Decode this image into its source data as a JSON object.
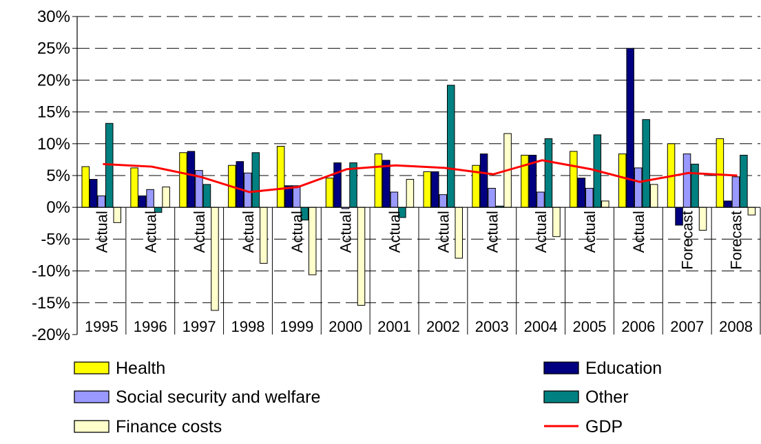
{
  "chart_data": {
    "type": "bar",
    "title": "",
    "xlabel": "",
    "ylabel": "",
    "ylim": [
      -20,
      30
    ],
    "y_ticks": [
      "30%",
      "25%",
      "20%",
      "15%",
      "10%",
      "5%",
      "0%",
      "-5%",
      "-10%",
      "-15%",
      "-20%"
    ],
    "y_tick_values": [
      30,
      25,
      20,
      15,
      10,
      5,
      0,
      -5,
      -10,
      -15,
      -20
    ],
    "grid": "horizontal dashed",
    "categories": [
      "1995",
      "1996",
      "1997",
      "1998",
      "1999",
      "2000",
      "2001",
      "2002",
      "2003",
      "2004",
      "2005",
      "2006",
      "2007",
      "2008"
    ],
    "status_labels": [
      "Actual",
      "Actual",
      "Actual",
      "Actual",
      "Actual",
      "Actual",
      "Actual",
      "Actual",
      "Actual",
      "Actual",
      "Actual",
      "Actual",
      "Forecast",
      "Forecast"
    ],
    "series": [
      {
        "name": "Health",
        "type": "bar",
        "color": "#FFFF00",
        "values": [
          6.4,
          6.2,
          8.6,
          6.6,
          9.6,
          4.6,
          8.4,
          5.6,
          6.6,
          8.2,
          8.8,
          8.4,
          10.0,
          10.8
        ]
      },
      {
        "name": "Education",
        "type": "bar",
        "color": "#000080",
        "values": [
          4.4,
          1.8,
          8.8,
          7.2,
          3.4,
          7.0,
          7.4,
          5.6,
          8.4,
          8.2,
          4.6,
          25.0,
          -2.8,
          1.0
        ]
      },
      {
        "name": "Social security and welfare",
        "type": "bar",
        "color": "#9999FF",
        "values": [
          1.8,
          2.8,
          5.8,
          5.4,
          3.4,
          -0.2,
          2.4,
          2.0,
          3.0,
          2.4,
          3.0,
          6.2,
          8.4,
          4.8
        ]
      },
      {
        "name": "Other",
        "type": "bar",
        "color": "#008080",
        "values": [
          13.2,
          -0.8,
          3.6,
          8.6,
          -2.0,
          7.0,
          -1.6,
          19.2,
          0.2,
          10.8,
          11.4,
          13.8,
          6.8,
          8.2
        ]
      },
      {
        "name": "Finance costs",
        "type": "bar",
        "color": "#FFFFCC",
        "values": [
          -2.4,
          3.2,
          -16.2,
          -8.8,
          -10.6,
          -15.4,
          4.4,
          -8.0,
          11.6,
          -4.6,
          1.0,
          3.6,
          -3.6,
          -1.2
        ]
      },
      {
        "name": "GDP",
        "type": "line",
        "color": "#FF0000",
        "values": [
          6.8,
          6.4,
          4.8,
          2.4,
          3.2,
          6.0,
          6.6,
          6.2,
          5.2,
          7.4,
          6.0,
          4.0,
          5.4,
          5.0
        ]
      }
    ],
    "legend": {
      "placement": "bottom",
      "items": [
        {
          "label": "Health",
          "kind": "box",
          "color": "#FFFF00"
        },
        {
          "label": "Education",
          "kind": "box",
          "color": "#000080"
        },
        {
          "label": "Social security and welfare",
          "kind": "box",
          "color": "#9999FF"
        },
        {
          "label": "Other",
          "kind": "box",
          "color": "#008080"
        },
        {
          "label": "Finance costs",
          "kind": "box",
          "color": "#FFFFCC"
        },
        {
          "label": "GDP",
          "kind": "line",
          "color": "#FF0000"
        }
      ]
    }
  }
}
